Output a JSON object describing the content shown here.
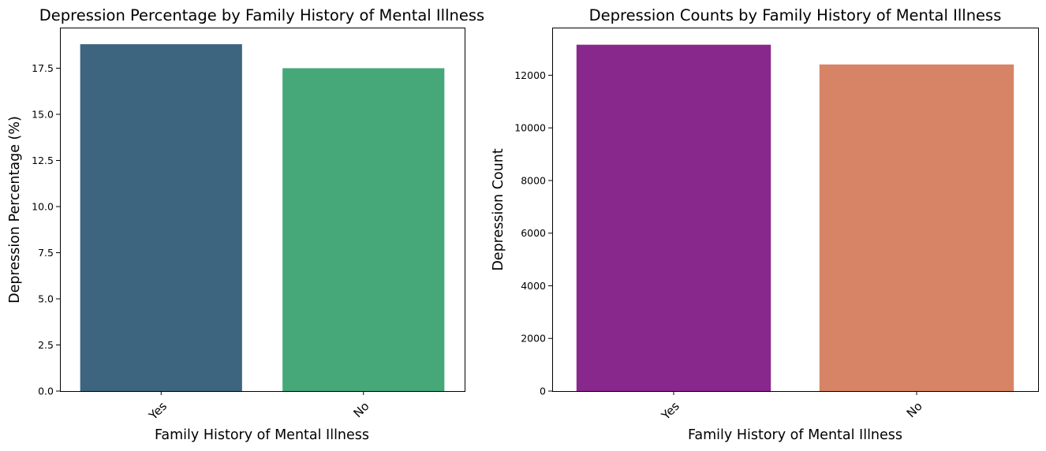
{
  "chart_data": [
    {
      "type": "bar",
      "title": "Depression Percentage by Family History of Mental Illness",
      "xlabel": "Family History of Mental Illness",
      "ylabel": "Depression Percentage (%)",
      "categories": [
        "Yes",
        "No"
      ],
      "values": [
        18.8,
        17.5
      ],
      "colors": [
        "#3e657f",
        "#46a878"
      ],
      "ylim": [
        0,
        19.7
      ],
      "yticks": [
        0,
        2.5,
        5,
        7.5,
        10,
        12.5,
        15,
        17.5
      ],
      "ytick_labels": [
        "0.0",
        "2.5",
        "5.0",
        "7.5",
        "10.0",
        "12.5",
        "15.0",
        "17.5"
      ],
      "grid": false,
      "legend": "none"
    },
    {
      "type": "bar",
      "title": "Depression Counts by Family History of Mental Illness",
      "xlabel": "Family History of Mental Illness",
      "ylabel": "Depression Count",
      "categories": [
        "Yes",
        "No"
      ],
      "values": [
        13160,
        12410
      ],
      "colors": [
        "#89288c",
        "#d78366"
      ],
      "ylim": [
        0,
        13810
      ],
      "yticks": [
        0,
        2000,
        4000,
        6000,
        8000,
        10000,
        12000
      ],
      "ytick_labels": [
        "0",
        "2000",
        "4000",
        "6000",
        "8000",
        "10000",
        "12000"
      ],
      "grid": false,
      "legend": "none"
    }
  ]
}
